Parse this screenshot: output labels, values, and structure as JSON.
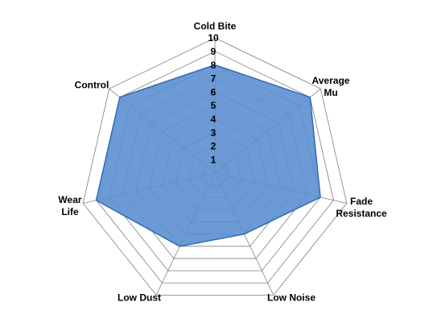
{
  "chart_data": {
    "type": "radar",
    "categories": [
      "Cold Bite",
      "Average Mu",
      "Fade Resistance",
      "Low Noise",
      "Low Dust",
      "Wear Life",
      "Control"
    ],
    "values": [
      8,
      9,
      8,
      5,
      6,
      9,
      9
    ],
    "color": "#5b8fd0",
    "rlim": [
      0,
      10
    ],
    "rticks": [
      1,
      2,
      3,
      4,
      5,
      6,
      7,
      8,
      9,
      10
    ],
    "grid": true
  }
}
